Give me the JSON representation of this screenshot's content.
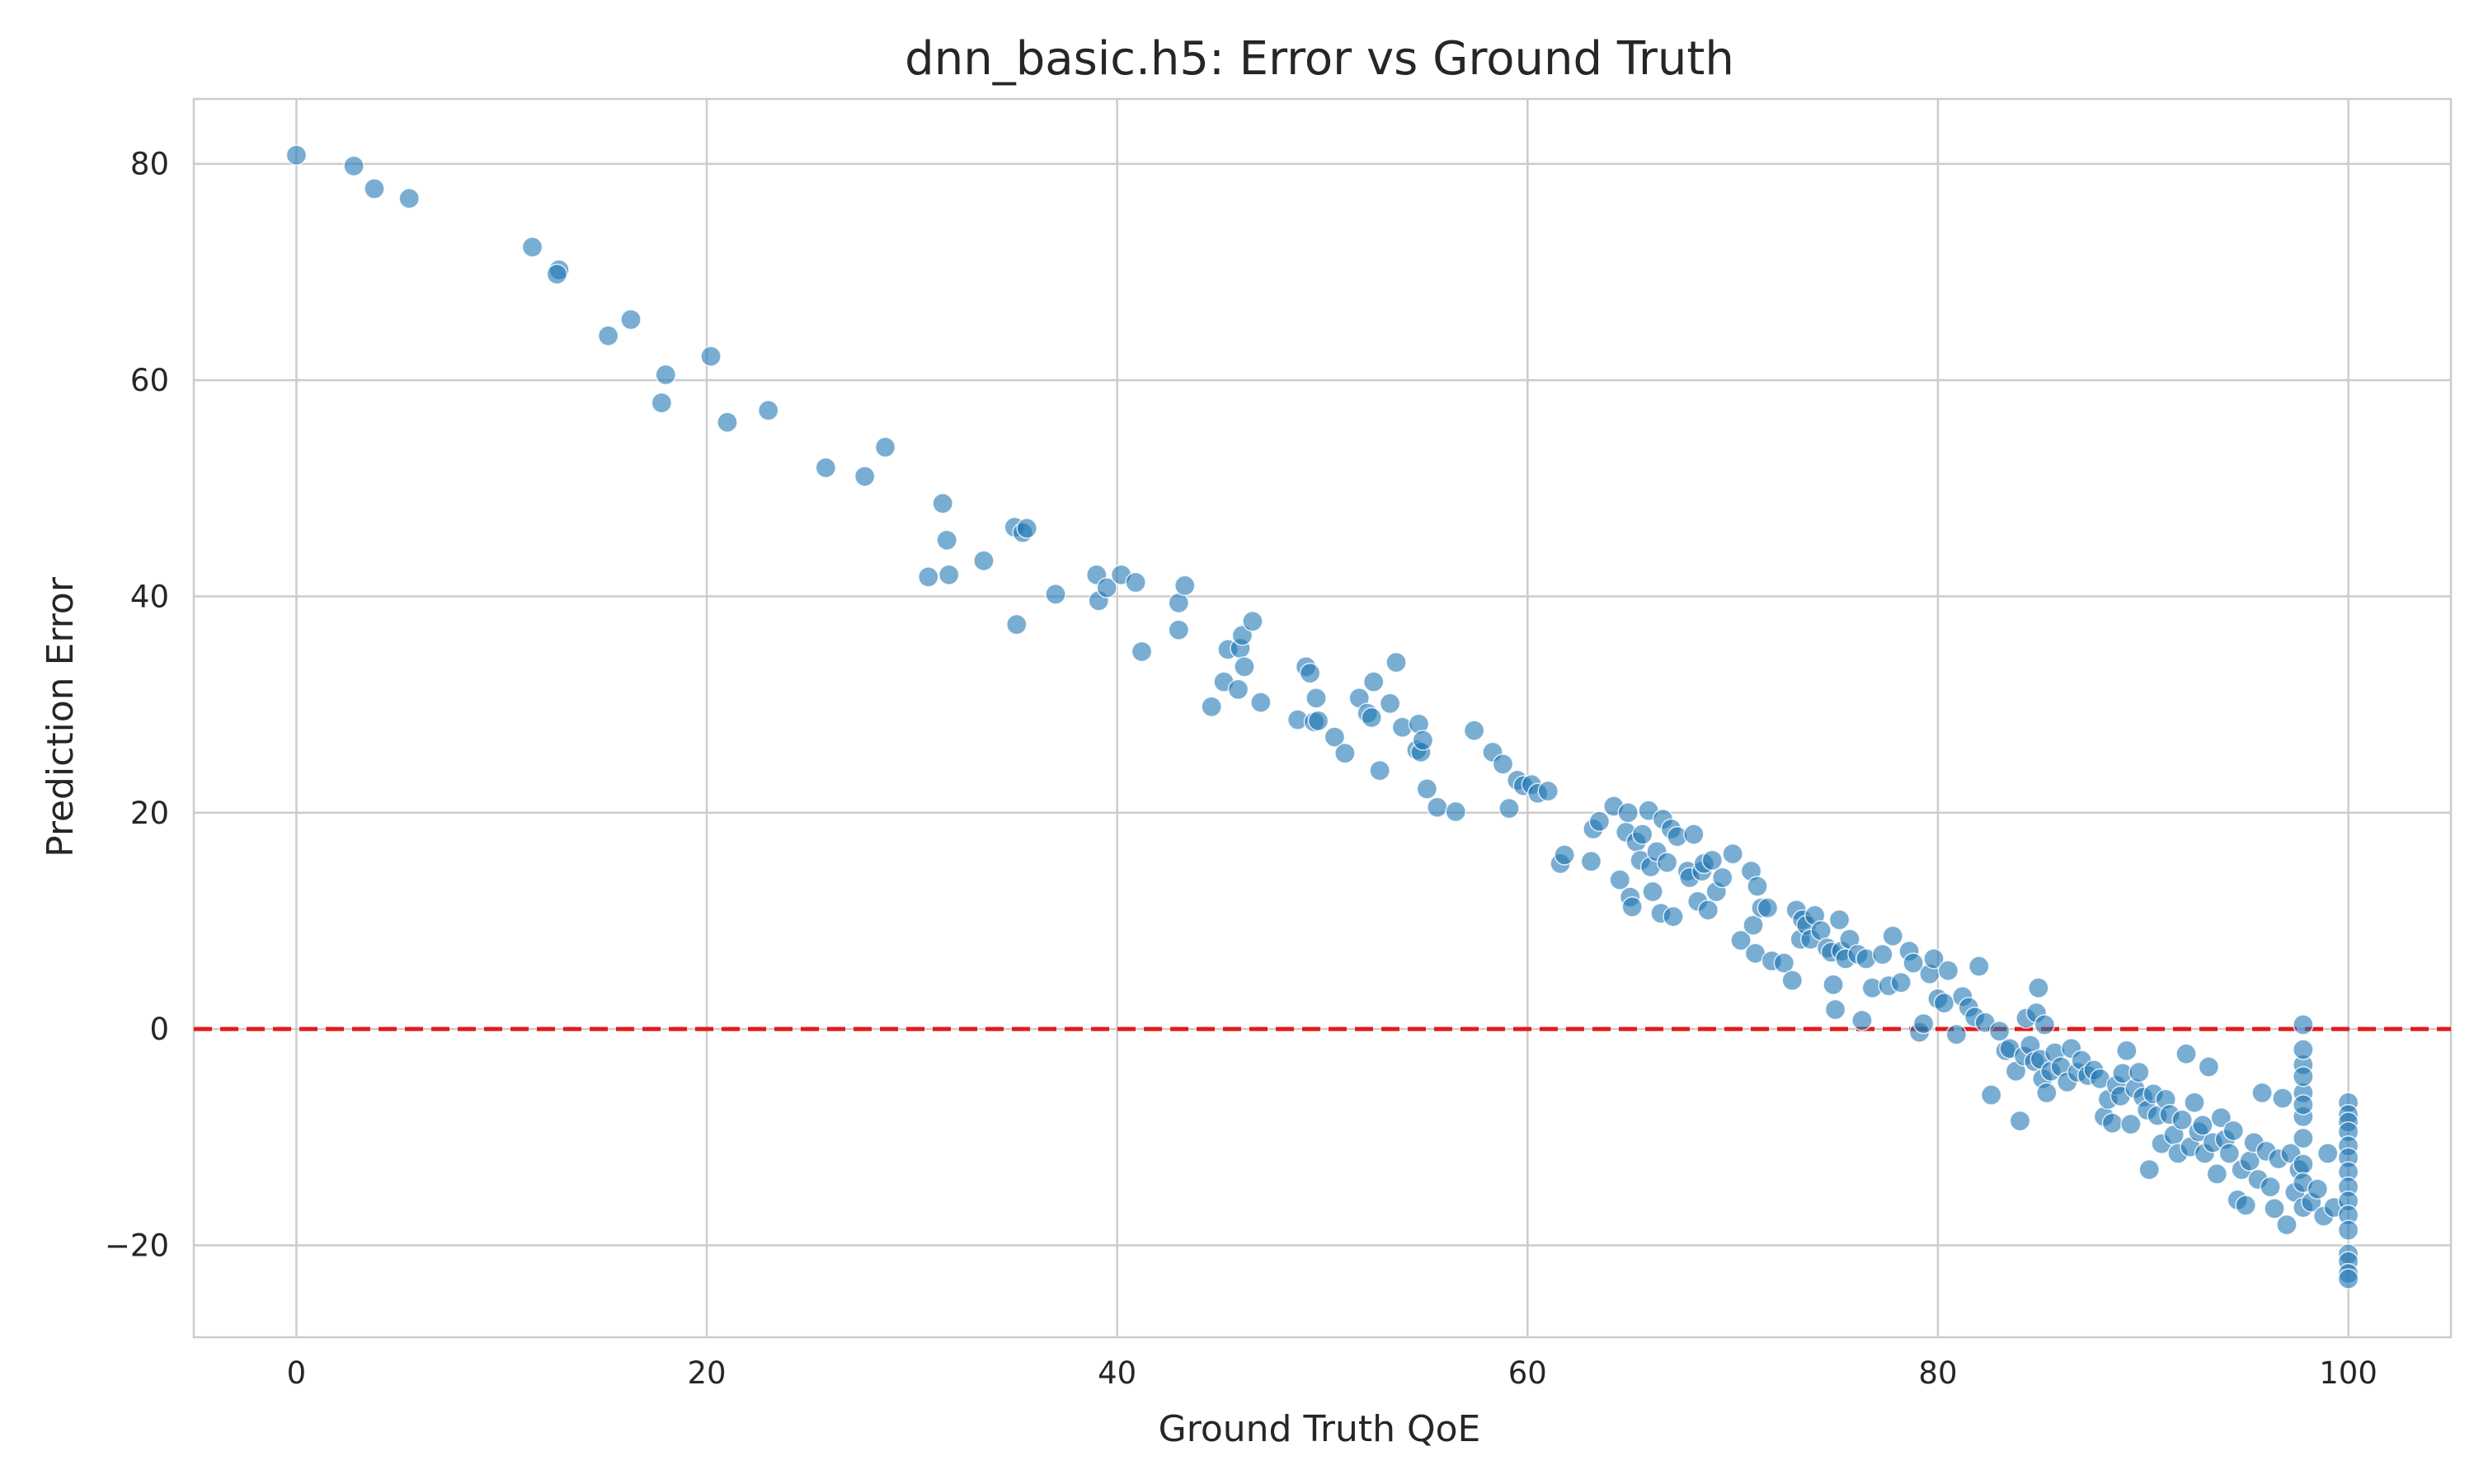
{
  "chart_data": {
    "type": "scatter",
    "title": "dnn_basic.h5: Error vs Ground Truth",
    "xlabel": "Ground Truth QoE",
    "ylabel": "Prediction Error",
    "xlim": [
      -5,
      105
    ],
    "ylim": [
      -28.5,
      86
    ],
    "x_ticks": [
      0,
      20,
      40,
      60,
      80,
      100
    ],
    "x_tick_labels": [
      "0",
      "20",
      "40",
      "60",
      "80",
      "100"
    ],
    "y_ticks": [
      -20,
      0,
      20,
      40,
      60,
      80
    ],
    "y_tick_labels": [
      "−20",
      "0",
      "20",
      "40",
      "60",
      "80"
    ],
    "grid": true,
    "point_color": "#1f77b4",
    "reference_line": {
      "y": 0,
      "style": "dashed",
      "color": "#e41a1c"
    },
    "points": [
      [
        0.0,
        80.8
      ],
      [
        2.8,
        79.8
      ],
      [
        3.8,
        77.7
      ],
      [
        5.5,
        76.8
      ],
      [
        11.5,
        72.3
      ],
      [
        12.8,
        70.2
      ],
      [
        12.7,
        69.8
      ],
      [
        15.2,
        64.1
      ],
      [
        16.3,
        65.6
      ],
      [
        17.8,
        57.9
      ],
      [
        18.0,
        60.5
      ],
      [
        20.2,
        62.2
      ],
      [
        21.0,
        56.1
      ],
      [
        23.0,
        57.2
      ],
      [
        25.8,
        51.9
      ],
      [
        27.7,
        51.1
      ],
      [
        28.7,
        53.8
      ],
      [
        30.8,
        41.8
      ],
      [
        31.5,
        48.6
      ],
      [
        31.7,
        45.2
      ],
      [
        31.8,
        42.0
      ],
      [
        33.5,
        43.3
      ],
      [
        35.0,
        46.4
      ],
      [
        35.1,
        37.4
      ],
      [
        35.4,
        45.9
      ],
      [
        35.6,
        46.3
      ],
      [
        37.0,
        40.2
      ],
      [
        39.0,
        42.0
      ],
      [
        39.1,
        39.6
      ],
      [
        39.5,
        40.8
      ],
      [
        40.2,
        42.0
      ],
      [
        40.9,
        41.3
      ],
      [
        41.2,
        34.9
      ],
      [
        43.0,
        39.4
      ],
      [
        43.0,
        36.9
      ],
      [
        43.3,
        41.0
      ],
      [
        44.6,
        29.8
      ],
      [
        45.2,
        32.1
      ],
      [
        45.4,
        35.1
      ],
      [
        45.9,
        31.4
      ],
      [
        46.0,
        35.2
      ],
      [
        46.1,
        36.4
      ],
      [
        46.2,
        33.5
      ],
      [
        46.6,
        37.7
      ],
      [
        47.0,
        30.2
      ],
      [
        48.8,
        28.6
      ],
      [
        49.2,
        33.5
      ],
      [
        49.4,
        32.9
      ],
      [
        49.6,
        28.4
      ],
      [
        49.7,
        30.6
      ],
      [
        49.8,
        28.5
      ],
      [
        50.6,
        27.0
      ],
      [
        51.1,
        25.5
      ],
      [
        51.8,
        30.6
      ],
      [
        52.2,
        29.2
      ],
      [
        52.4,
        28.8
      ],
      [
        52.5,
        32.1
      ],
      [
        52.8,
        23.9
      ],
      [
        53.3,
        30.1
      ],
      [
        53.6,
        33.9
      ],
      [
        53.9,
        27.9
      ],
      [
        54.6,
        25.8
      ],
      [
        54.7,
        28.2
      ],
      [
        54.8,
        25.6
      ],
      [
        54.9,
        26.7
      ],
      [
        55.1,
        22.2
      ],
      [
        55.6,
        20.5
      ],
      [
        56.5,
        20.1
      ],
      [
        57.4,
        27.6
      ],
      [
        58.3,
        25.6
      ],
      [
        58.8,
        24.5
      ],
      [
        59.1,
        20.4
      ],
      [
        59.5,
        23.0
      ],
      [
        59.8,
        22.5
      ],
      [
        60.2,
        22.6
      ],
      [
        60.5,
        21.8
      ],
      [
        61.0,
        22.0
      ],
      [
        61.6,
        15.3
      ],
      [
        61.8,
        16.1
      ],
      [
        63.1,
        15.5
      ],
      [
        63.2,
        18.5
      ],
      [
        63.5,
        19.2
      ],
      [
        64.2,
        20.6
      ],
      [
        64.5,
        13.8
      ],
      [
        64.8,
        18.2
      ],
      [
        64.9,
        20.0
      ],
      [
        65.0,
        12.2
      ],
      [
        65.1,
        11.3
      ],
      [
        65.3,
        17.3
      ],
      [
        65.5,
        15.6
      ],
      [
        65.6,
        18.0
      ],
      [
        65.9,
        20.2
      ],
      [
        66.0,
        15.0
      ],
      [
        66.1,
        12.7
      ],
      [
        66.3,
        16.4
      ],
      [
        66.5,
        10.7
      ],
      [
        66.6,
        19.4
      ],
      [
        66.8,
        15.4
      ],
      [
        67.0,
        18.5
      ],
      [
        67.1,
        10.4
      ],
      [
        67.3,
        17.8
      ],
      [
        67.8,
        14.6
      ],
      [
        67.9,
        14.0
      ],
      [
        68.1,
        18.0
      ],
      [
        68.3,
        11.8
      ],
      [
        68.5,
        14.6
      ],
      [
        68.6,
        15.3
      ],
      [
        68.8,
        11.0
      ],
      [
        69.0,
        15.6
      ],
      [
        69.2,
        12.7
      ],
      [
        69.5,
        14.0
      ],
      [
        70.0,
        16.2
      ],
      [
        70.4,
        8.2
      ],
      [
        70.9,
        14.6
      ],
      [
        71.0,
        9.6
      ],
      [
        71.1,
        7.0
      ],
      [
        71.2,
        13.2
      ],
      [
        71.4,
        11.2
      ],
      [
        71.7,
        11.2
      ],
      [
        71.9,
        6.3
      ],
      [
        72.5,
        6.1
      ],
      [
        72.9,
        4.5
      ],
      [
        73.1,
        11.0
      ],
      [
        73.3,
        8.3
      ],
      [
        73.4,
        10.1
      ],
      [
        73.6,
        9.6
      ],
      [
        73.8,
        8.3
      ],
      [
        74.0,
        10.5
      ],
      [
        74.3,
        9.1
      ],
      [
        74.6,
        7.5
      ],
      [
        74.8,
        7.1
      ],
      [
        74.9,
        4.1
      ],
      [
        75.0,
        1.8
      ],
      [
        75.2,
        10.1
      ],
      [
        75.3,
        7.2
      ],
      [
        75.5,
        6.5
      ],
      [
        75.7,
        8.3
      ],
      [
        76.1,
        6.9
      ],
      [
        76.3,
        0.8
      ],
      [
        76.5,
        6.5
      ],
      [
        76.8,
        3.8
      ],
      [
        77.3,
        6.9
      ],
      [
        77.6,
        4.0
      ],
      [
        77.8,
        8.6
      ],
      [
        78.2,
        4.3
      ],
      [
        78.6,
        7.2
      ],
      [
        78.8,
        6.1
      ],
      [
        79.1,
        -0.3
      ],
      [
        79.3,
        0.5
      ],
      [
        79.6,
        5.1
      ],
      [
        79.8,
        6.5
      ],
      [
        80.0,
        2.8
      ],
      [
        80.3,
        2.4
      ],
      [
        80.5,
        5.4
      ],
      [
        80.9,
        -0.5
      ],
      [
        81.2,
        3.0
      ],
      [
        81.5,
        2.0
      ],
      [
        81.8,
        1.1
      ],
      [
        82.0,
        5.8
      ],
      [
        82.3,
        0.6
      ],
      [
        82.6,
        -6.1
      ],
      [
        83.0,
        -0.2
      ],
      [
        83.3,
        -2.0
      ],
      [
        83.5,
        -1.8
      ],
      [
        83.8,
        -3.9
      ],
      [
        84.0,
        -8.5
      ],
      [
        84.2,
        -2.5
      ],
      [
        84.3,
        1.0
      ],
      [
        84.5,
        -1.5
      ],
      [
        84.7,
        -3.0
      ],
      [
        84.8,
        1.5
      ],
      [
        84.9,
        3.8
      ],
      [
        85.0,
        -2.8
      ],
      [
        85.1,
        -4.6
      ],
      [
        85.2,
        0.4
      ],
      [
        85.3,
        -5.9
      ],
      [
        85.5,
        -3.9
      ],
      [
        85.7,
        -2.2
      ],
      [
        86.0,
        -3.5
      ],
      [
        86.3,
        -4.9
      ],
      [
        86.5,
        -1.8
      ],
      [
        86.8,
        -4.0
      ],
      [
        87.0,
        -2.9
      ],
      [
        87.3,
        -4.3
      ],
      [
        87.6,
        -3.8
      ],
      [
        87.9,
        -4.6
      ],
      [
        88.1,
        -8.1
      ],
      [
        88.3,
        -6.5
      ],
      [
        88.5,
        -8.7
      ],
      [
        88.7,
        -5.2
      ],
      [
        88.9,
        -6.2
      ],
      [
        89.0,
        -4.1
      ],
      [
        89.2,
        -2.0
      ],
      [
        89.4,
        -8.8
      ],
      [
        89.6,
        -5.5
      ],
      [
        89.8,
        -4.0
      ],
      [
        90.0,
        -6.3
      ],
      [
        90.2,
        -7.5
      ],
      [
        90.3,
        -13.0
      ],
      [
        90.5,
        -6.0
      ],
      [
        90.7,
        -8.0
      ],
      [
        90.9,
        -10.6
      ],
      [
        91.1,
        -6.5
      ],
      [
        91.3,
        -7.9
      ],
      [
        91.5,
        -9.8
      ],
      [
        91.7,
        -11.5
      ],
      [
        91.9,
        -8.4
      ],
      [
        92.1,
        -2.3
      ],
      [
        92.3,
        -10.9
      ],
      [
        92.5,
        -6.8
      ],
      [
        92.7,
        -9.5
      ],
      [
        92.9,
        -8.9
      ],
      [
        93.0,
        -11.5
      ],
      [
        93.2,
        -3.5
      ],
      [
        93.4,
        -10.5
      ],
      [
        93.6,
        -13.4
      ],
      [
        93.8,
        -8.2
      ],
      [
        94.0,
        -10.2
      ],
      [
        94.2,
        -11.5
      ],
      [
        94.4,
        -9.4
      ],
      [
        94.6,
        -15.8
      ],
      [
        94.8,
        -13.0
      ],
      [
        95.0,
        -16.3
      ],
      [
        95.2,
        -12.2
      ],
      [
        95.4,
        -10.5
      ],
      [
        95.6,
        -13.9
      ],
      [
        95.8,
        -5.9
      ],
      [
        96.0,
        -11.3
      ],
      [
        96.2,
        -14.6
      ],
      [
        96.4,
        -16.6
      ],
      [
        96.6,
        -12.0
      ],
      [
        96.8,
        -6.4
      ],
      [
        97.0,
        -18.1
      ],
      [
        97.2,
        -11.5
      ],
      [
        97.4,
        -15.1
      ],
      [
        97.6,
        -13.0
      ],
      [
        97.8,
        -8.1
      ],
      [
        97.8,
        -3.3
      ],
      [
        97.8,
        -5.9
      ],
      [
        97.8,
        0.4
      ],
      [
        97.8,
        -1.9
      ],
      [
        97.8,
        -10.1
      ],
      [
        97.8,
        -12.5
      ],
      [
        97.8,
        -14.2
      ],
      [
        97.8,
        -16.5
      ],
      [
        97.8,
        -7.0
      ],
      [
        97.8,
        -4.4
      ],
      [
        98.2,
        -16.0
      ],
      [
        98.5,
        -14.8
      ],
      [
        98.8,
        -17.3
      ],
      [
        99.0,
        -11.5
      ],
      [
        99.3,
        -16.5
      ],
      [
        100.0,
        -6.8
      ],
      [
        100.0,
        -7.9
      ],
      [
        100.0,
        -8.6
      ],
      [
        100.0,
        -9.5
      ],
      [
        100.0,
        -10.8
      ],
      [
        100.0,
        -11.9
      ],
      [
        100.0,
        -13.2
      ],
      [
        100.0,
        -14.6
      ],
      [
        100.0,
        -15.9
      ],
      [
        100.0,
        -17.2
      ],
      [
        100.0,
        -18.6
      ],
      [
        100.0,
        -20.8
      ],
      [
        100.0,
        -21.5
      ],
      [
        100.0,
        -22.6
      ],
      [
        100.0,
        -23.1
      ]
    ]
  }
}
